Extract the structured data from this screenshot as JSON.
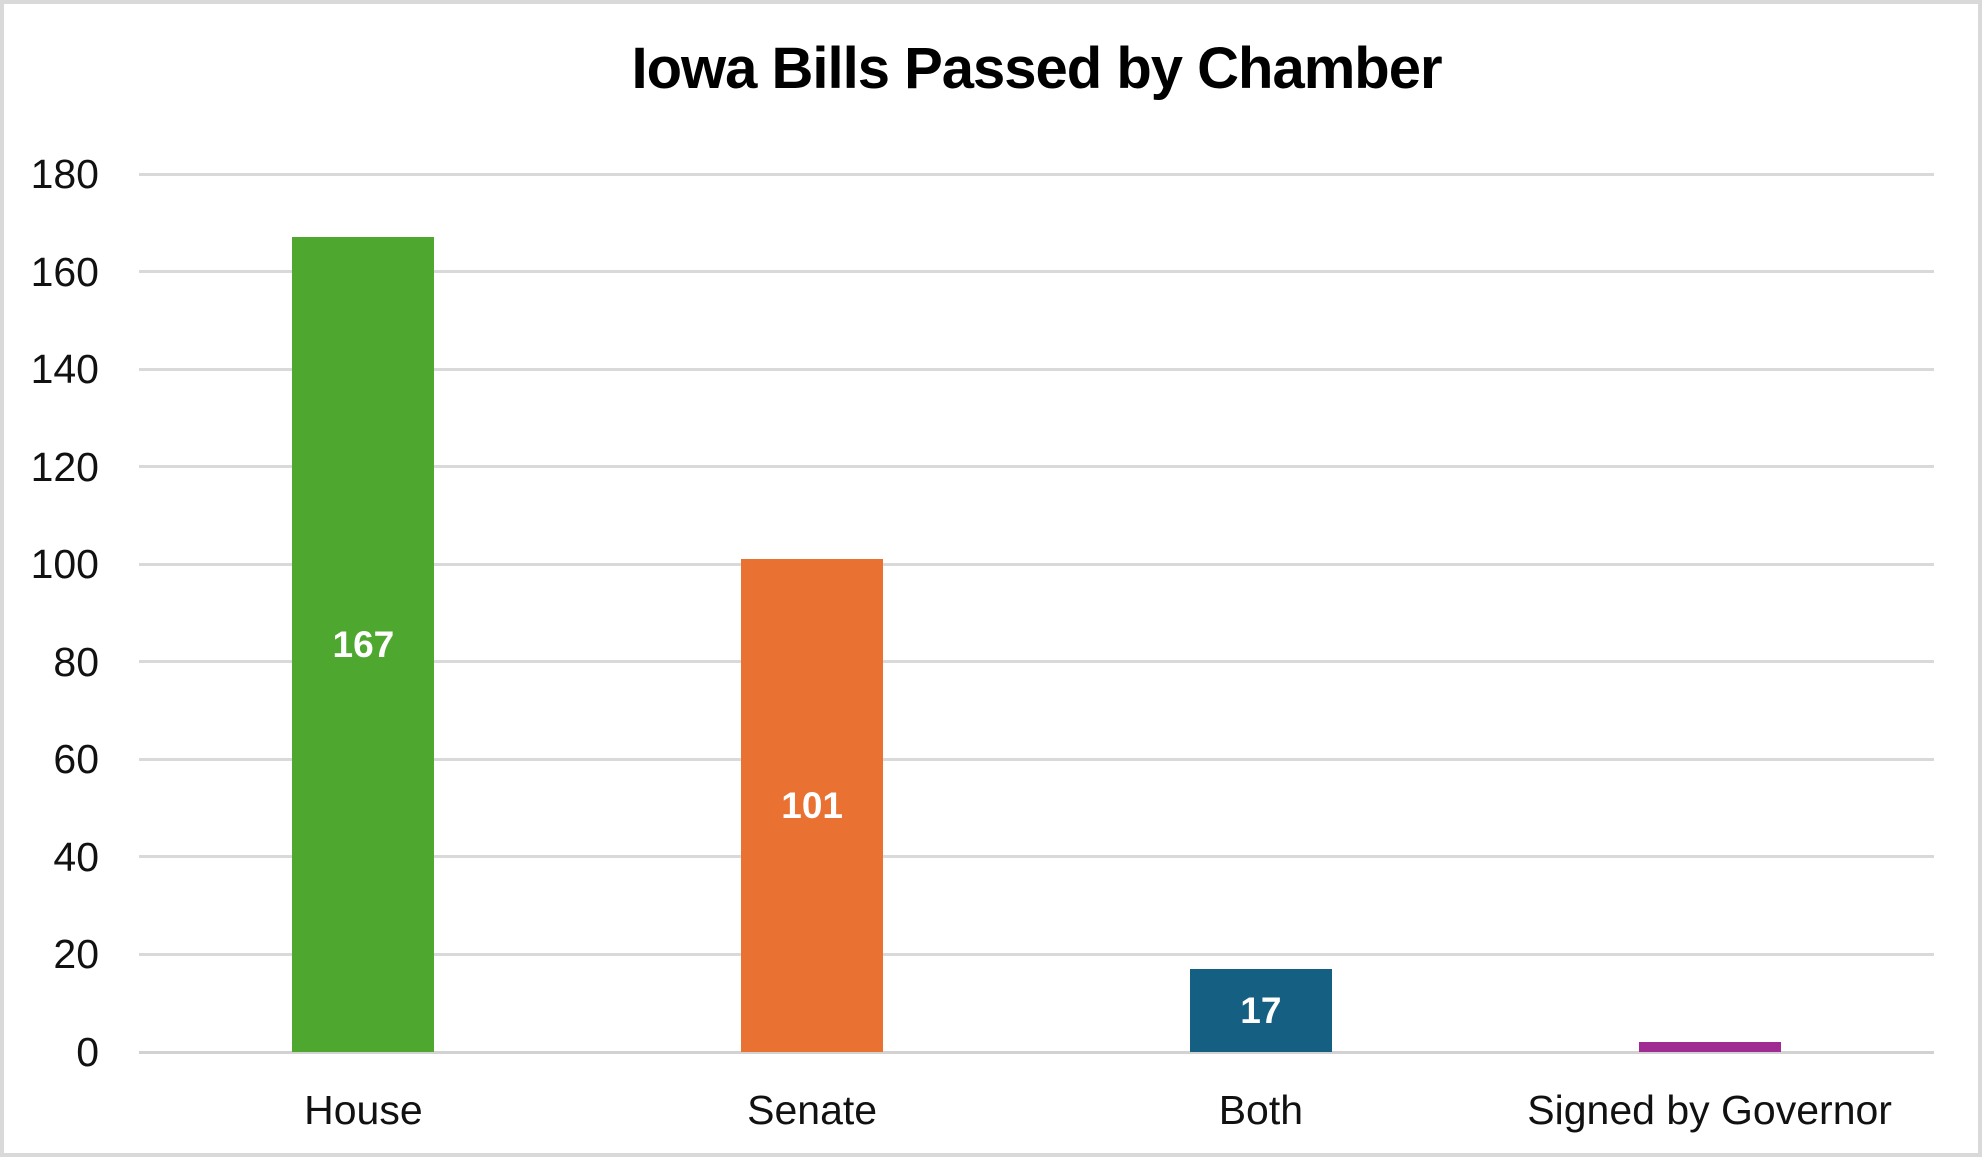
{
  "title": "Iowa Bills Passed by Chamber",
  "colors": {
    "background": "#ffffff",
    "border": "#d9d9d9",
    "gridline": "#d9d9d9",
    "axis_line": "#d2d2d2",
    "tick_text": "#111111",
    "title_text": "#000000",
    "data_label_text": "#ffffff"
  },
  "chart_data": {
    "type": "bar",
    "title": "Iowa Bills Passed by Chamber",
    "categories": [
      "House",
      "Senate",
      "Both",
      "Signed by Governor"
    ],
    "values": [
      167,
      101,
      17,
      2
    ],
    "bar_colors": [
      "#4EA72E",
      "#E97132",
      "#156082",
      "#A02B93"
    ],
    "data_labels": [
      "167",
      "101",
      "17",
      ""
    ],
    "xlabel": "",
    "ylabel": "",
    "ylim": [
      0,
      180
    ],
    "yticks": [
      0,
      20,
      40,
      60,
      80,
      100,
      120,
      140,
      160,
      180
    ],
    "grid": true,
    "legend_position": "none"
  }
}
